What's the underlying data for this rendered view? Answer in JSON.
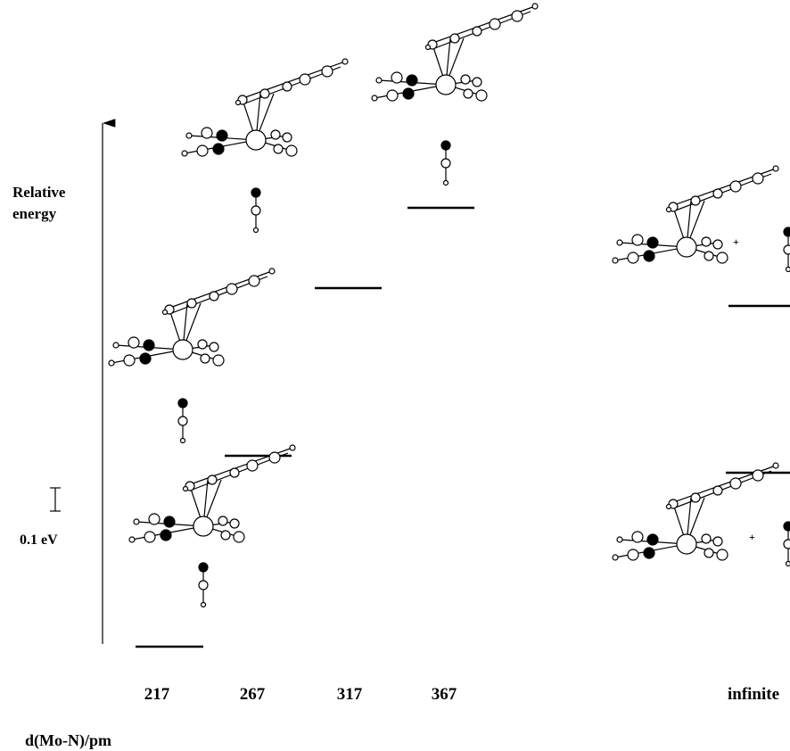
{
  "y_axis_label": {
    "line1": "Relative",
    "line2": "energy"
  },
  "scale_bar": {
    "label": "0.1 eV"
  },
  "x_labels": [
    "217",
    "267",
    "317",
    "367",
    "infinite"
  ],
  "x_axis_label": "d(Mo-N)/pm"
}
